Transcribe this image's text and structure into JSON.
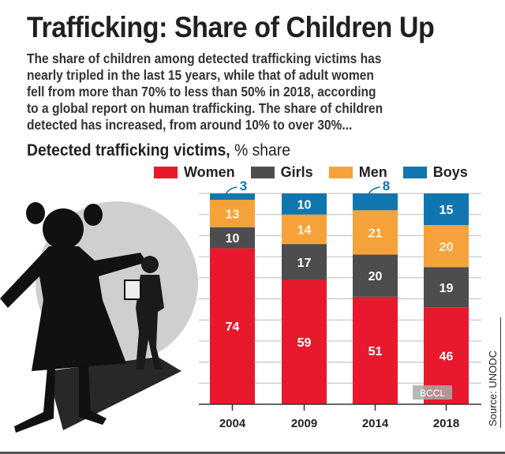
{
  "header": {
    "title": "Trafficking: Share of Children Up",
    "description_lines": [
      "The share of children among detected trafficking victims has",
      "nearly tripled in the last 15 years, while that of adult women",
      "fell from more than 70% to less than 50% in 2018, according",
      "to a global report on human trafficking. The share of children",
      "detected has increased, from around 10% to over 30%..."
    ],
    "subtitle_bold": "Detected trafficking victims,",
    "subtitle_unit": "% share"
  },
  "watermark": "BCCL",
  "source": "Source: UNODC",
  "chart_data": {
    "type": "bar",
    "stacked": true,
    "title": "Detected trafficking victims, % share",
    "categories": [
      "2004",
      "2009",
      "2014",
      "2018"
    ],
    "series": [
      {
        "name": "Women",
        "color": "#e8192c",
        "values": [
          74,
          59,
          51,
          46
        ]
      },
      {
        "name": "Girls",
        "color": "#4d4d4f",
        "values": [
          10,
          17,
          20,
          19
        ]
      },
      {
        "name": "Men",
        "color": "#f6a23a",
        "values": [
          13,
          14,
          21,
          20
        ]
      },
      {
        "name": "Boys",
        "color": "#0f76b0",
        "values": [
          3,
          10,
          8,
          15
        ]
      }
    ],
    "ylim": [
      0,
      100
    ],
    "grid": true,
    "legend_position": "top"
  }
}
